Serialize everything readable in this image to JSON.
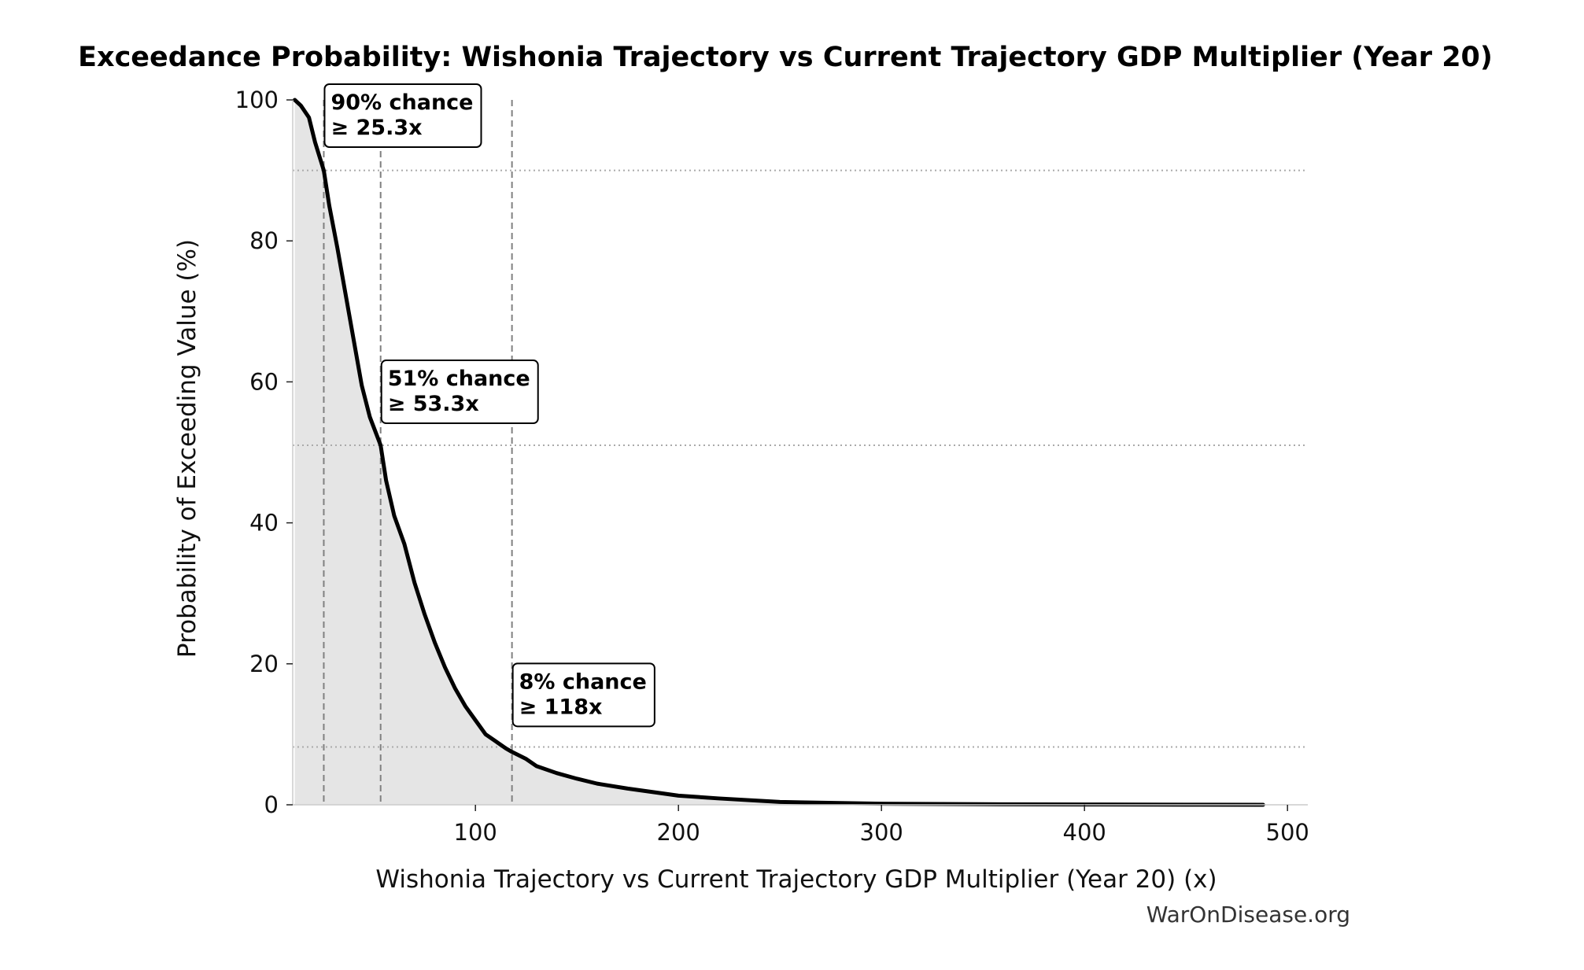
{
  "chart_data": {
    "type": "area",
    "title": "Exceedance Probability: Wishonia Trajectory vs Current Trajectory GDP Multiplier (Year 20)",
    "xlabel": "Wishonia Trajectory vs Current Trajectory GDP Multiplier (Year 20) (x)",
    "ylabel": "Probability of Exceeding Value (%)",
    "xlim": [
      10,
      510
    ],
    "ylim": [
      0,
      100
    ],
    "x_ticks": [
      100,
      200,
      300,
      400,
      500
    ],
    "y_ticks": [
      0,
      20,
      40,
      60,
      80,
      100
    ],
    "grid": false,
    "legend": "none",
    "series": [
      {
        "x": [
          11,
          14,
          18,
          21,
          25.3,
          28,
          32,
          36,
          40,
          44,
          48,
          53.3,
          56,
          60,
          65,
          70,
          75,
          80,
          85,
          90,
          95,
          100,
          105,
          110,
          115,
          118,
          125,
          130,
          140,
          150,
          160,
          175,
          190,
          200,
          220,
          250,
          300,
          350,
          400,
          450,
          488
        ],
        "y": [
          100,
          99.2,
          97.5,
          94,
          90,
          85,
          79,
          72.5,
          66,
          59.5,
          55,
          51,
          46,
          41,
          37,
          31.5,
          27,
          23,
          19.5,
          16.5,
          14,
          12,
          10,
          9,
          8,
          7.5,
          6.5,
          5.5,
          4.5,
          3.7,
          3,
          2.3,
          1.7,
          1.3,
          0.9,
          0.4,
          0.15,
          0.08,
          0.04,
          0.02,
          0.0
        ]
      }
    ],
    "reference_lines": [
      {
        "x": 25.3,
        "y": 90
      },
      {
        "x": 53.3,
        "y": 51
      },
      {
        "x": 118,
        "y": 8.2
      }
    ],
    "annotations": [
      {
        "line1": "90% chance",
        "line2": "≥ 25.3x",
        "x": 25.3,
        "y": 90
      },
      {
        "line1": "51% chance",
        "line2": "≥ 53.3x",
        "x": 53.3,
        "y": 51
      },
      {
        "line1": "8% chance",
        "line2": "≥ 118x",
        "x": 118,
        "y": 8
      }
    ],
    "colors": {
      "line": "#000000",
      "fill": "#e5e5e5",
      "reference": "#808080",
      "guide": "#aaaaaa"
    }
  },
  "credit": "WarOnDisease.org"
}
